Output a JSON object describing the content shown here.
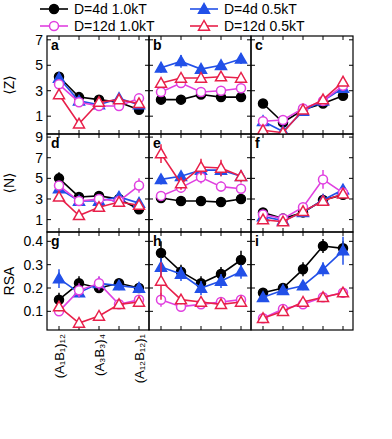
{
  "chart_data": [
    {
      "type": "line",
      "title": "a",
      "ylabel": "⟨Z⟩",
      "categories": [
        null,
        null,
        null,
        null,
        null
      ],
      "ylim": [
        -0.4,
        7.3
      ],
      "yticks": [
        1,
        3,
        5,
        7
      ],
      "tick_labels": "y",
      "legend": "top",
      "series": [
        {
          "name": "D=4d 1.0kT",
          "color": "#000000",
          "marker": "circle",
          "values": [
            4.1,
            2.5,
            2.3,
            2.1,
            1.5
          ],
          "errors": [
            0.3,
            0.2,
            0.2,
            0.2,
            0.3
          ]
        },
        {
          "name": "D=4d 0.5kT",
          "color": "#2250e8",
          "marker": "triangle",
          "values": [
            4.0,
            2.2,
            1.9,
            2.4,
            1.9
          ],
          "errors": [
            0.3,
            0.2,
            0.3,
            0.3,
            0.3
          ]
        },
        {
          "name": "D=12d 1.0kT",
          "color": "#e040e0",
          "marker": "circle-open",
          "values": [
            3.5,
            2.1,
            1.8,
            1.8,
            2.4
          ],
          "errors": [
            0.3,
            0.2,
            0.2,
            0.2,
            0.3
          ]
        },
        {
          "name": "D=12d 0.5kT",
          "color": "#e8204a",
          "marker": "triangle-open",
          "values": [
            2.7,
            0.4,
            2.1,
            2.3,
            2.0
          ],
          "errors": [
            0.3,
            0.3,
            0.3,
            0.3,
            0.3
          ]
        }
      ]
    },
    {
      "type": "line",
      "title": "b",
      "categories": [
        null,
        null,
        null,
        null,
        null
      ],
      "ylim": [
        -0.4,
        7.3
      ],
      "yticks": [
        1,
        3,
        5,
        7
      ],
      "tick_labels": false,
      "series": [
        {
          "name": "D=4d 1.0kT",
          "color": "#000000",
          "marker": "circle",
          "values": [
            2.3,
            2.3,
            2.7,
            2.5,
            2.5
          ],
          "errors": [
            0.2,
            0.2,
            0.2,
            0.2,
            0.2
          ]
        },
        {
          "name": "D=4d 0.5kT",
          "color": "#2250e8",
          "marker": "triangle",
          "values": [
            4.8,
            5.3,
            4.7,
            5.0,
            5.5
          ],
          "errors": [
            0.4,
            0.5,
            0.4,
            0.3,
            0.4
          ]
        },
        {
          "name": "D=12d 1.0kT",
          "color": "#e040e0",
          "marker": "circle-open",
          "values": [
            2.9,
            3.6,
            2.9,
            3.0,
            3.2
          ],
          "errors": [
            0.2,
            0.3,
            0.2,
            0.2,
            0.2
          ]
        },
        {
          "name": "D=12d 0.5kT",
          "color": "#e8204a",
          "marker": "triangle-open",
          "values": [
            3.6,
            4.0,
            4.0,
            4.1,
            4.0
          ],
          "errors": [
            0.3,
            0.3,
            0.3,
            0.3,
            0.3
          ]
        }
      ]
    },
    {
      "type": "line",
      "title": "c",
      "categories": [
        null,
        null,
        null,
        null,
        null
      ],
      "ylim": [
        -0.4,
        7.3
      ],
      "yticks": [
        1,
        3,
        5,
        7
      ],
      "tick_labels": false,
      "series": [
        {
          "name": "D=4d 1.0kT",
          "color": "#000000",
          "marker": "circle",
          "values": [
            2.0,
            0.5,
            1.5,
            2.0,
            2.6
          ],
          "errors": [
            0.2,
            0.2,
            0.2,
            0.2,
            0.3
          ]
        },
        {
          "name": "D=4d 0.5kT",
          "color": "#2250e8",
          "marker": "triangle",
          "values": [
            0.6,
            -0.2,
            1.4,
            2.2,
            3.2
          ],
          "errors": [
            0.2,
            0.2,
            0.2,
            0.2,
            0.3
          ]
        },
        {
          "name": "D=12d 1.0kT",
          "color": "#e040e0",
          "marker": "circle-open",
          "values": [
            0.6,
            0.7,
            1.6,
            2.2,
            3.4
          ],
          "errors": [
            0.2,
            0.2,
            0.2,
            0.2,
            0.3
          ]
        },
        {
          "name": "D=12d 0.5kT",
          "color": "#e8204a",
          "marker": "triangle-open",
          "values": [
            -0.1,
            -0.3,
            1.5,
            2.3,
            3.7
          ],
          "errors": [
            0.2,
            0.2,
            0.2,
            0.2,
            0.3
          ]
        }
      ]
    },
    {
      "type": "line",
      "title": "d",
      "ylabel": "⟨N⟩",
      "categories": [
        null,
        null,
        null,
        null,
        null
      ],
      "ylim": [
        -0.2,
        9.3
      ],
      "yticks": [
        1,
        3,
        5,
        7,
        9
      ],
      "tick_labels": "y",
      "series": [
        {
          "name": "D=4d 1.0kT",
          "color": "#000000",
          "marker": "circle",
          "values": [
            5.0,
            3.2,
            3.3,
            3.0,
            2.0
          ],
          "errors": [
            0.6,
            0.3,
            0.3,
            0.3,
            0.3
          ]
        },
        {
          "name": "D=4d 0.5kT",
          "color": "#2250e8",
          "marker": "triangle",
          "values": [
            4.0,
            2.8,
            2.8,
            3.2,
            2.6
          ],
          "errors": [
            0.4,
            0.3,
            0.3,
            0.3,
            0.3
          ]
        },
        {
          "name": "D=12d 1.0kT",
          "color": "#e040e0",
          "marker": "circle-open",
          "values": [
            4.3,
            2.8,
            3.0,
            2.8,
            4.3
          ],
          "errors": [
            0.4,
            0.3,
            0.3,
            0.3,
            0.7
          ]
        },
        {
          "name": "D=12d 0.5kT",
          "color": "#e8204a",
          "marker": "triangle-open",
          "values": [
            3.2,
            1.4,
            2.2,
            2.7,
            2.4
          ],
          "errors": [
            0.4,
            0.3,
            0.3,
            0.3,
            0.3
          ]
        }
      ]
    },
    {
      "type": "line",
      "title": "e",
      "categories": [
        null,
        null,
        null,
        null,
        null
      ],
      "ylim": [
        -0.2,
        9.3
      ],
      "yticks": [
        1,
        3,
        5,
        7,
        9
      ],
      "tick_labels": false,
      "series": [
        {
          "name": "D=4d 1.0kT",
          "color": "#000000",
          "marker": "circle",
          "values": [
            3.1,
            2.8,
            2.8,
            2.7,
            3.0
          ],
          "errors": [
            0.3,
            0.2,
            0.2,
            0.2,
            0.3
          ]
        },
        {
          "name": "D=4d 0.5kT",
          "color": "#2250e8",
          "marker": "triangle",
          "values": [
            4.9,
            5.2,
            5.8,
            5.8,
            5.2
          ],
          "errors": [
            0.5,
            0.5,
            0.6,
            0.6,
            0.5
          ]
        },
        {
          "name": "D=12d 1.0kT",
          "color": "#e040e0",
          "marker": "circle-open",
          "values": [
            3.3,
            4.1,
            5.1,
            4.2,
            4.0
          ],
          "errors": [
            0.4,
            0.5,
            0.6,
            0.5,
            0.5
          ]
        },
        {
          "name": "D=12d 0.5kT",
          "color": "#e8204a",
          "marker": "triangle-open",
          "values": [
            7.4,
            4.5,
            6.1,
            6.0,
            5.2
          ],
          "errors": [
            0.9,
            0.6,
            0.8,
            0.8,
            0.6
          ]
        }
      ]
    },
    {
      "type": "line",
      "title": "f",
      "categories": [
        null,
        null,
        null,
        null,
        null
      ],
      "ylim": [
        -0.2,
        9.3
      ],
      "yticks": [
        1,
        3,
        5,
        7,
        9
      ],
      "tick_labels": false,
      "series": [
        {
          "name": "D=4d 1.0kT",
          "color": "#000000",
          "marker": "circle",
          "values": [
            1.7,
            1.1,
            1.7,
            2.9,
            3.4
          ],
          "errors": [
            0.2,
            0.2,
            0.2,
            0.3,
            0.4
          ]
        },
        {
          "name": "D=4d 0.5kT",
          "color": "#2250e8",
          "marker": "triangle",
          "values": [
            1.3,
            0.9,
            1.7,
            2.9,
            3.9
          ],
          "errors": [
            0.2,
            0.2,
            0.2,
            0.3,
            0.4
          ]
        },
        {
          "name": "D=12d 1.0kT",
          "color": "#e040e0",
          "marker": "circle-open",
          "values": [
            1.5,
            1.1,
            2.2,
            4.9,
            3.6
          ],
          "errors": [
            0.2,
            0.2,
            0.3,
            0.9,
            0.5
          ]
        },
        {
          "name": "D=12d 0.5kT",
          "color": "#e8204a",
          "marker": "triangle-open",
          "values": [
            1.0,
            0.8,
            1.8,
            2.8,
            3.5
          ],
          "errors": [
            0.2,
            0.2,
            0.2,
            0.3,
            0.4
          ]
        }
      ]
    },
    {
      "type": "line",
      "title": "g",
      "ylabel": "RSA",
      "categories": [
        "(A₁B₁)₁₂",
        null,
        "(A₃B₃)₄",
        null,
        "(A₁₂B₁₂)₁"
      ],
      "ylim": [
        0.02,
        0.44
      ],
      "yticks": [
        0.1,
        0.2,
        0.3,
        0.4
      ],
      "tick_labels": true,
      "series": [
        {
          "name": "D=4d 1.0kT",
          "color": "#000000",
          "marker": "circle",
          "values": [
            0.15,
            0.22,
            0.2,
            0.22,
            0.2
          ],
          "errors": [
            0.03,
            0.03,
            0.02,
            0.02,
            0.02
          ]
        },
        {
          "name": "D=4d 0.5kT",
          "color": "#2250e8",
          "marker": "triangle",
          "values": [
            0.24,
            0.18,
            0.22,
            0.21,
            0.2
          ],
          "errors": [
            0.04,
            0.02,
            0.02,
            0.02,
            0.02
          ]
        },
        {
          "name": "D=12d 1.0kT",
          "color": "#e040e0",
          "marker": "circle-open",
          "values": [
            0.1,
            0.19,
            0.22,
            0.13,
            0.15
          ],
          "errors": [
            0.02,
            0.03,
            0.03,
            0.02,
            0.02
          ]
        },
        {
          "name": "D=12d 0.5kT",
          "color": "#e8204a",
          "marker": "triangle-open",
          "values": [
            0.12,
            0.05,
            0.08,
            0.13,
            0.14
          ],
          "errors": [
            0.02,
            0.01,
            0.02,
            0.02,
            0.02
          ]
        }
      ]
    },
    {
      "type": "line",
      "title": "h",
      "categories": [
        null,
        null,
        null,
        null,
        null
      ],
      "ylim": [
        0.02,
        0.44
      ],
      "yticks": [
        0.1,
        0.2,
        0.3,
        0.4
      ],
      "tick_labels": false,
      "series": [
        {
          "name": "D=4d 1.0kT",
          "color": "#000000",
          "marker": "circle",
          "values": [
            0.35,
            0.27,
            0.22,
            0.26,
            0.32
          ],
          "errors": [
            0.05,
            0.03,
            0.03,
            0.03,
            0.04
          ]
        },
        {
          "name": "D=4d 0.5kT",
          "color": "#2250e8",
          "marker": "triangle",
          "values": [
            0.29,
            0.26,
            0.2,
            0.23,
            0.27
          ],
          "errors": [
            0.04,
            0.03,
            0.03,
            0.03,
            0.03
          ]
        },
        {
          "name": "D=12d 1.0kT",
          "color": "#e040e0",
          "marker": "circle-open",
          "values": [
            0.15,
            0.12,
            0.13,
            0.14,
            0.15
          ],
          "errors": [
            0.03,
            0.02,
            0.02,
            0.02,
            0.02
          ]
        },
        {
          "name": "D=12d 0.5kT",
          "color": "#e8204a",
          "marker": "triangle-open",
          "values": [
            0.23,
            0.15,
            0.14,
            0.13,
            0.14
          ],
          "errors": [
            0.08,
            0.02,
            0.02,
            0.02,
            0.02
          ]
        }
      ]
    },
    {
      "type": "line",
      "title": "i",
      "categories": [
        null,
        null,
        null,
        null,
        null
      ],
      "ylim": [
        0.02,
        0.44
      ],
      "yticks": [
        0.1,
        0.2,
        0.3,
        0.4
      ],
      "tick_labels": false,
      "series": [
        {
          "name": "D=4d 1.0kT",
          "color": "#000000",
          "marker": "circle",
          "values": [
            0.18,
            0.2,
            0.28,
            0.38,
            0.37
          ],
          "errors": [
            0.02,
            0.02,
            0.03,
            0.03,
            0.03
          ]
        },
        {
          "name": "D=4d 0.5kT",
          "color": "#2250e8",
          "marker": "triangle",
          "values": [
            0.16,
            0.19,
            0.21,
            0.28,
            0.36
          ],
          "errors": [
            0.02,
            0.02,
            0.02,
            0.03,
            0.06
          ]
        },
        {
          "name": "D=12d 1.0kT",
          "color": "#e040e0",
          "marker": "circle-open",
          "values": [
            0.07,
            0.11,
            0.13,
            0.16,
            0.18
          ],
          "errors": [
            0.01,
            0.01,
            0.01,
            0.02,
            0.02
          ]
        },
        {
          "name": "D=12d 0.5kT",
          "color": "#e8204a",
          "marker": "triangle-open",
          "values": [
            0.07,
            0.1,
            0.14,
            0.16,
            0.18
          ],
          "errors": [
            0.01,
            0.01,
            0.01,
            0.02,
            0.02
          ]
        }
      ]
    }
  ]
}
